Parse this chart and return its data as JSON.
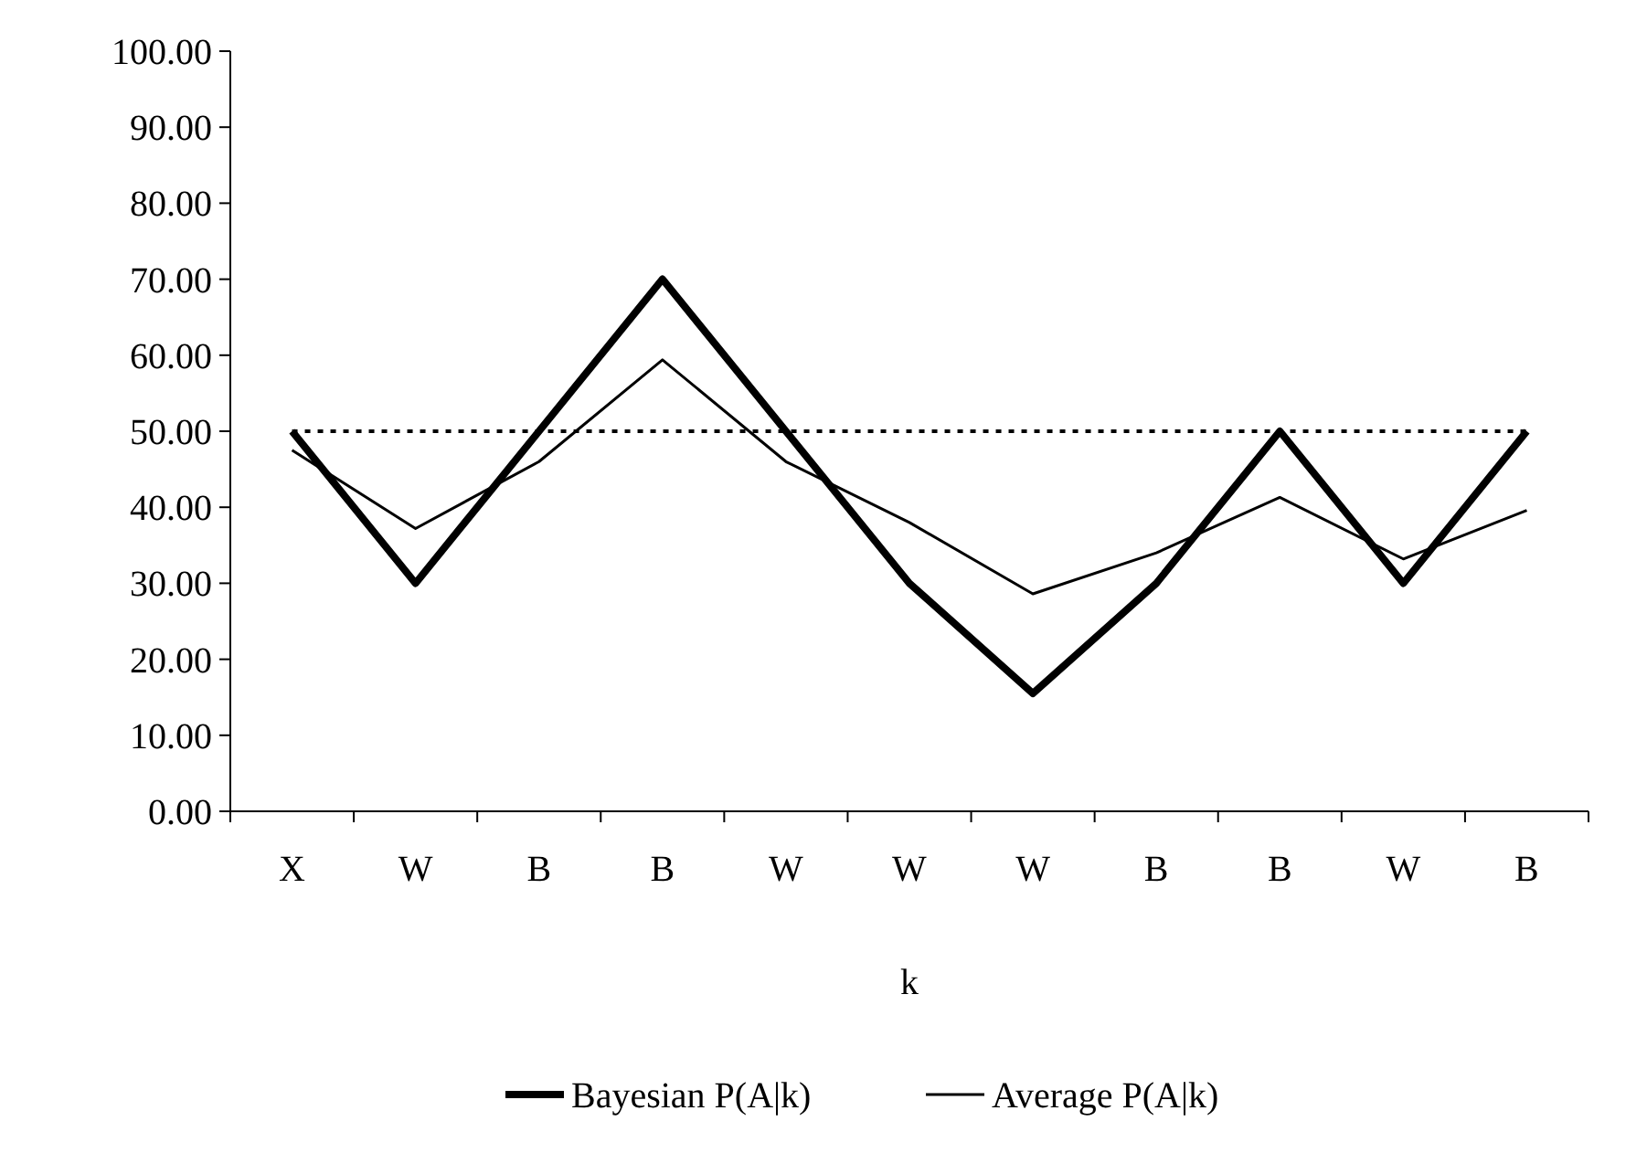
{
  "chart_data": {
    "type": "line",
    "xlabel": "k",
    "categories": [
      "X",
      "W",
      "B",
      "B",
      "W",
      "W",
      "W",
      "B",
      "B",
      "W",
      "B"
    ],
    "series": [
      {
        "name": "Bayesian P(A|k)",
        "color": "#000000",
        "values": [
          50,
          30,
          50,
          70,
          50,
          30,
          15.5,
          30,
          50,
          30,
          50
        ]
      },
      {
        "name": "Average P(A|k)",
        "color": "#000000",
        "values": [
          47.5,
          37.2,
          46,
          59.4,
          46,
          38,
          28.6,
          34,
          41.3,
          33.2,
          39.6
        ]
      }
    ],
    "ylim": [
      0,
      100
    ],
    "yticks": [
      {
        "value": 0,
        "label": "0.00"
      },
      {
        "value": 10,
        "label": "10.00"
      },
      {
        "value": 20,
        "label": "20.00"
      },
      {
        "value": 30,
        "label": "30.00"
      },
      {
        "value": 40,
        "label": "40.00"
      },
      {
        "value": 50,
        "label": "50.00"
      },
      {
        "value": 60,
        "label": "60.00"
      },
      {
        "value": 70,
        "label": "70.00"
      },
      {
        "value": 80,
        "label": "80.00"
      },
      {
        "value": 90,
        "label": "90.00"
      },
      {
        "value": 100,
        "label": "100.00"
      }
    ],
    "ref_lines": [
      {
        "axis": "y",
        "value": 50,
        "color": "#000000",
        "line_style": "dotted"
      }
    ],
    "legend": "bottom",
    "grid": false,
    "marker": "none"
  }
}
